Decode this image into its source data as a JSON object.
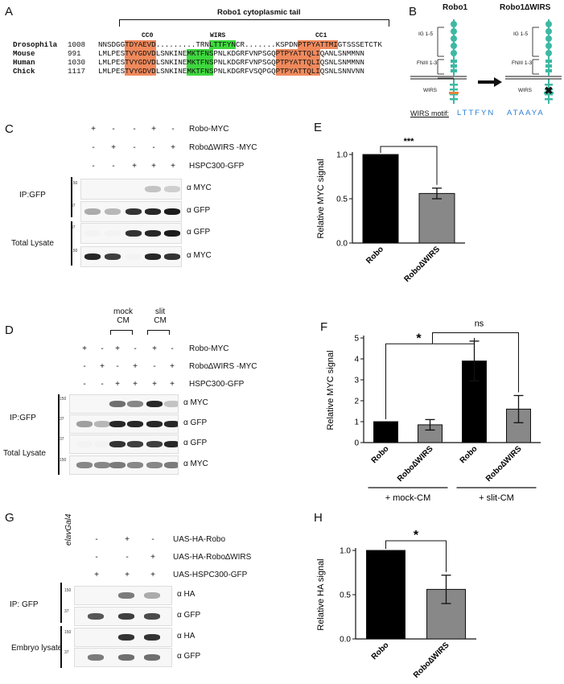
{
  "panels": {
    "a": "A",
    "b": "B",
    "c": "C",
    "d": "D",
    "e": "E",
    "f": "F",
    "g": "G",
    "h": "H"
  },
  "panelA": {
    "title": "Robo1 cytoplasmic tail",
    "cc0": "CC0",
    "wirs": "WIRS",
    "cc1": "CC1",
    "rows": [
      {
        "species": "Drosophila",
        "pos": "1008",
        "pre": "NNSDGG",
        "cc0": "TDYAEVD",
        "mid": ".........TRN",
        "wirs": "LTTFYN",
        "post": "CR.......KSPDN",
        "cc1": "PTPYATTMI",
        "tail": "GTSSSETCTK"
      },
      {
        "species": "Mouse",
        "pos": "991",
        "pre": "LMLPES",
        "cc0": "TVYGDVD",
        "mid": "LSNKINE",
        "wirs": "MKTFNS",
        "post": "PNLKDGRFVNPSGQ",
        "cc1": "PTPYATTQLI",
        "tail": "QANLSNMMNN"
      },
      {
        "species": "Human",
        "pos": "1030",
        "pre": "LMLPES",
        "cc0": "TVYGDVD",
        "mid": "LSNKINE",
        "wirs": "MKTFNS",
        "post": "PNLKDGRFVNPSGQ",
        "cc1": "PTPYATTQLI",
        "tail": "QSNLSNMMNN"
      },
      {
        "species": "Chick",
        "pos": "1117",
        "pre": "LMLPES",
        "cc0": "TVYGDVD",
        "mid": "LSNKINE",
        "wirs": "MKTFNS",
        "post": "PNLKDGRFVSQPGQ",
        "cc1": "PTPYATTQLI",
        "tail": "QSNLSNNVNN"
      }
    ]
  },
  "panelB": {
    "robo1": "Robo1",
    "robo1dw": "Robo1∆WIRS",
    "ig": "IG 1-5",
    "fn": "FNIII 1-3",
    "wirs": "WIRS",
    "motif_label": "WIRS motif:",
    "motif_wt": [
      "L",
      "T",
      "T",
      "F",
      "Y",
      "N"
    ],
    "motif_mut": [
      "A",
      "T",
      "A",
      "A",
      "Y",
      "A"
    ],
    "colors": {
      "teal": "#3db9a3",
      "blue": "#2a7fd4",
      "orange": "#e8833a"
    }
  },
  "panelC": {
    "rows": [
      {
        "label": "Robo-MYC",
        "signs": [
          "+",
          "-",
          "-",
          "+",
          "-"
        ]
      },
      {
        "label": "Robo∆WIRS -MYC",
        "signs": [
          "-",
          "+",
          "-",
          "-",
          "+"
        ]
      },
      {
        "label": "HSPC300-GFP",
        "signs": [
          "-",
          "-",
          "+",
          "+",
          "+"
        ]
      }
    ],
    "ip": "IP:GFP",
    "total": "Total Lysate",
    "blots": [
      "α MYC",
      "α GFP",
      "α GFP",
      "α MYC"
    ],
    "mw": [
      "150",
      "37",
      "37",
      "150"
    ]
  },
  "panelD": {
    "mock": "mock",
    "slit": "slit",
    "cm": "CM",
    "rows": [
      {
        "label": "Robo-MYC",
        "signs": [
          "+",
          "-",
          "+",
          "-",
          "+",
          "-"
        ]
      },
      {
        "label": "Robo∆WIRS -MYC",
        "signs": [
          "-",
          "+",
          "-",
          "+",
          "-",
          "+"
        ]
      },
      {
        "label": "HSPC300-GFP",
        "signs": [
          "-",
          "-",
          "+",
          "+",
          "+",
          "+"
        ]
      }
    ],
    "ip": "IP:GFP",
    "total": "Total Lysate",
    "blots": [
      "α MYC",
      "α GFP",
      "α GFP",
      "α MYC"
    ],
    "mw": [
      "150",
      "37",
      "37",
      "150"
    ]
  },
  "panelG": {
    "rows": [
      {
        "label": "UAS-HA-Robo",
        "signs": [
          "-",
          "+",
          "-"
        ]
      },
      {
        "label": "UAS-HA-Robo∆WIRS",
        "signs": [
          "-",
          "-",
          "+"
        ]
      },
      {
        "label": "UAS-HSPC300-GFP",
        "signs": [
          "+",
          "+",
          "+"
        ]
      }
    ],
    "driver": "elavGal4",
    "ip": "IP: GFP",
    "total": "Embryo lysate",
    "blots": [
      "α HA",
      "α GFP",
      "α HA",
      "α GFP"
    ],
    "mw": [
      "150",
      "37",
      "150",
      "37"
    ]
  },
  "chart_data": [
    {
      "type": "bar",
      "panel": "E",
      "categories": [
        "Robo",
        "Robo∆WIRS"
      ],
      "values": [
        1.0,
        0.56
      ],
      "errors": [
        0,
        0.06
      ],
      "colors": [
        "#000000",
        "#888888"
      ],
      "ylabel": "Relative MYC signal",
      "ylim": [
        0,
        1.0
      ],
      "yticks": [
        "0.0",
        "0.5",
        "1.0"
      ],
      "significance": "***"
    },
    {
      "type": "bar",
      "panel": "F",
      "categories": [
        "Robo",
        "Robo∆WIRS",
        "Robo",
        "Robo∆WIRS"
      ],
      "values": [
        1.0,
        0.85,
        3.9,
        1.6
      ],
      "errors": [
        0,
        0.25,
        0.95,
        0.65
      ],
      "colors": [
        "#000000",
        "#888888",
        "#000000",
        "#888888"
      ],
      "ylabel": "Relative MYC signal",
      "ylim": [
        0,
        5
      ],
      "yticks": [
        "0",
        "1",
        "2",
        "3",
        "4",
        "5"
      ],
      "groups": [
        "+ mock-CM",
        "+ slit-CM"
      ],
      "significance": [
        "*",
        "ns"
      ]
    },
    {
      "type": "bar",
      "panel": "H",
      "categories": [
        "Robo",
        "Robo∆WIRS"
      ],
      "values": [
        1.0,
        0.56
      ],
      "errors": [
        0,
        0.16
      ],
      "colors": [
        "#000000",
        "#888888"
      ],
      "ylabel": "Relative HA signal",
      "ylim": [
        0,
        1.0
      ],
      "yticks": [
        "0.0",
        "0.5",
        "1.0"
      ],
      "significance": "*"
    }
  ]
}
